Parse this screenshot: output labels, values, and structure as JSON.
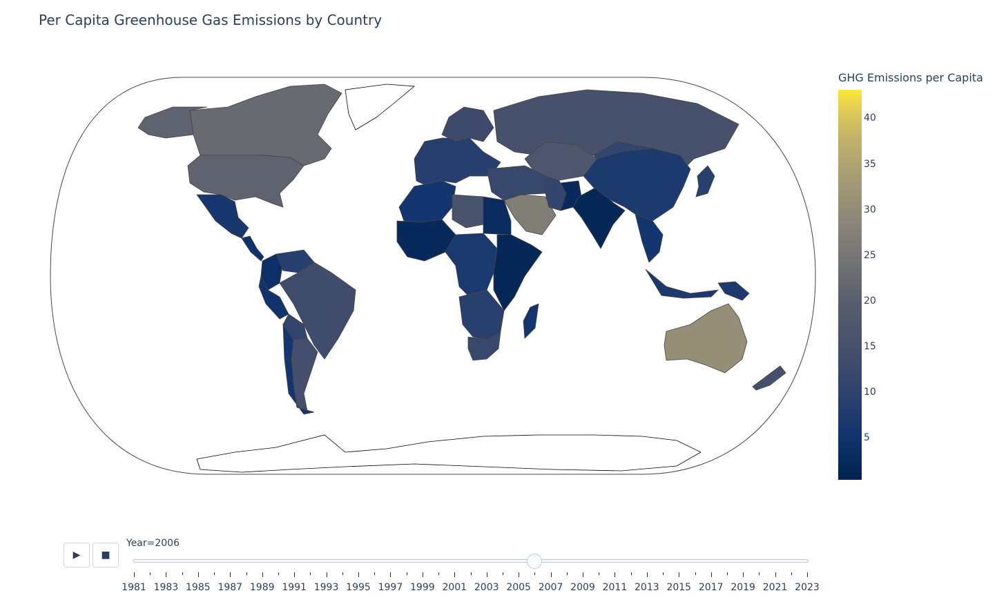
{
  "title": "Per Capita Greenhouse Gas Emissions by Country",
  "colorbar": {
    "title": "GHG Emissions per Capita",
    "min": 0.5,
    "max": 43.2,
    "ticks": [
      "5",
      "10",
      "15",
      "20",
      "25",
      "30",
      "35",
      "40"
    ],
    "colorscale": "cividis"
  },
  "slider": {
    "label_prefix": "Year=",
    "current": "2006",
    "years": [
      "1981",
      "1982",
      "1983",
      "1984",
      "1985",
      "1986",
      "1987",
      "1988",
      "1989",
      "1990",
      "1991",
      "1992",
      "1993",
      "1994",
      "1995",
      "1996",
      "1997",
      "1998",
      "1999",
      "2000",
      "2001",
      "2002",
      "2003",
      "2004",
      "2005",
      "2006",
      "2007",
      "2008",
      "2009",
      "2010",
      "2011",
      "2012",
      "2013",
      "2014",
      "2015",
      "2016",
      "2017",
      "2018",
      "2019",
      "2020",
      "2021",
      "2022",
      "2023"
    ],
    "labeled_years": [
      "1981",
      "1983",
      "1985",
      "1987",
      "1989",
      "1991",
      "1993",
      "1995",
      "1997",
      "1999",
      "2001",
      "2003",
      "2005",
      "2007",
      "2009",
      "2011",
      "2013",
      "2015",
      "2017",
      "2019",
      "2021",
      "2023"
    ]
  },
  "buttons": {
    "play_icon": "play-icon",
    "stop_icon": "stop-icon"
  },
  "regions": [
    {
      "name": "Canada",
      "value": 22.5
    },
    {
      "name": "United States",
      "value": 21.0
    },
    {
      "name": "Alaska",
      "value": 21.0
    },
    {
      "name": "Greenland",
      "value": null
    },
    {
      "name": "Mexico",
      "value": 6.5
    },
    {
      "name": "Central America",
      "value": 5.0
    },
    {
      "name": "Colombia",
      "value": 4.0
    },
    {
      "name": "Venezuela",
      "value": 9.0
    },
    {
      "name": "Brazil",
      "value": 13.5
    },
    {
      "name": "Peru",
      "value": 5.0
    },
    {
      "name": "Bolivia",
      "value": 11.0
    },
    {
      "name": "Argentina",
      "value": 14.5
    },
    {
      "name": "Chile",
      "value": 6.0
    },
    {
      "name": "Western Europe",
      "value": 9.0
    },
    {
      "name": "Scandinavia",
      "value": 13.0
    },
    {
      "name": "Russia",
      "value": 15.5
    },
    {
      "name": "Kazakhstan",
      "value": 17.0
    },
    {
      "name": "Middle East",
      "value": 12.0
    },
    {
      "name": "Saudi Arabia",
      "value": 27.0
    },
    {
      "name": "Iran",
      "value": 11.0
    },
    {
      "name": "Pakistan",
      "value": 2.5
    },
    {
      "name": "India",
      "value": 2.0
    },
    {
      "name": "China",
      "value": 7.5
    },
    {
      "name": "Mongolia",
      "value": 11.0
    },
    {
      "name": "Japan",
      "value": 9.5
    },
    {
      "name": "Southeast Asia",
      "value": 6.0
    },
    {
      "name": "Indonesia",
      "value": 7.0
    },
    {
      "name": "Papua New Guinea",
      "value": 7.5
    },
    {
      "name": "Australia",
      "value": 30.5
    },
    {
      "name": "New Zealand",
      "value": 15.0
    },
    {
      "name": "North Africa",
      "value": 6.0
    },
    {
      "name": "Libya",
      "value": 16.0
    },
    {
      "name": "Egypt",
      "value": 3.0
    },
    {
      "name": "West Africa",
      "value": 2.5
    },
    {
      "name": "Central Africa",
      "value": 7.0
    },
    {
      "name": "East Africa",
      "value": 2.0
    },
    {
      "name": "Southern Africa",
      "value": 9.5
    },
    {
      "name": "South Africa",
      "value": 12.0
    },
    {
      "name": "Madagascar",
      "value": 5.5
    },
    {
      "name": "Antarctica",
      "value": null
    }
  ]
}
